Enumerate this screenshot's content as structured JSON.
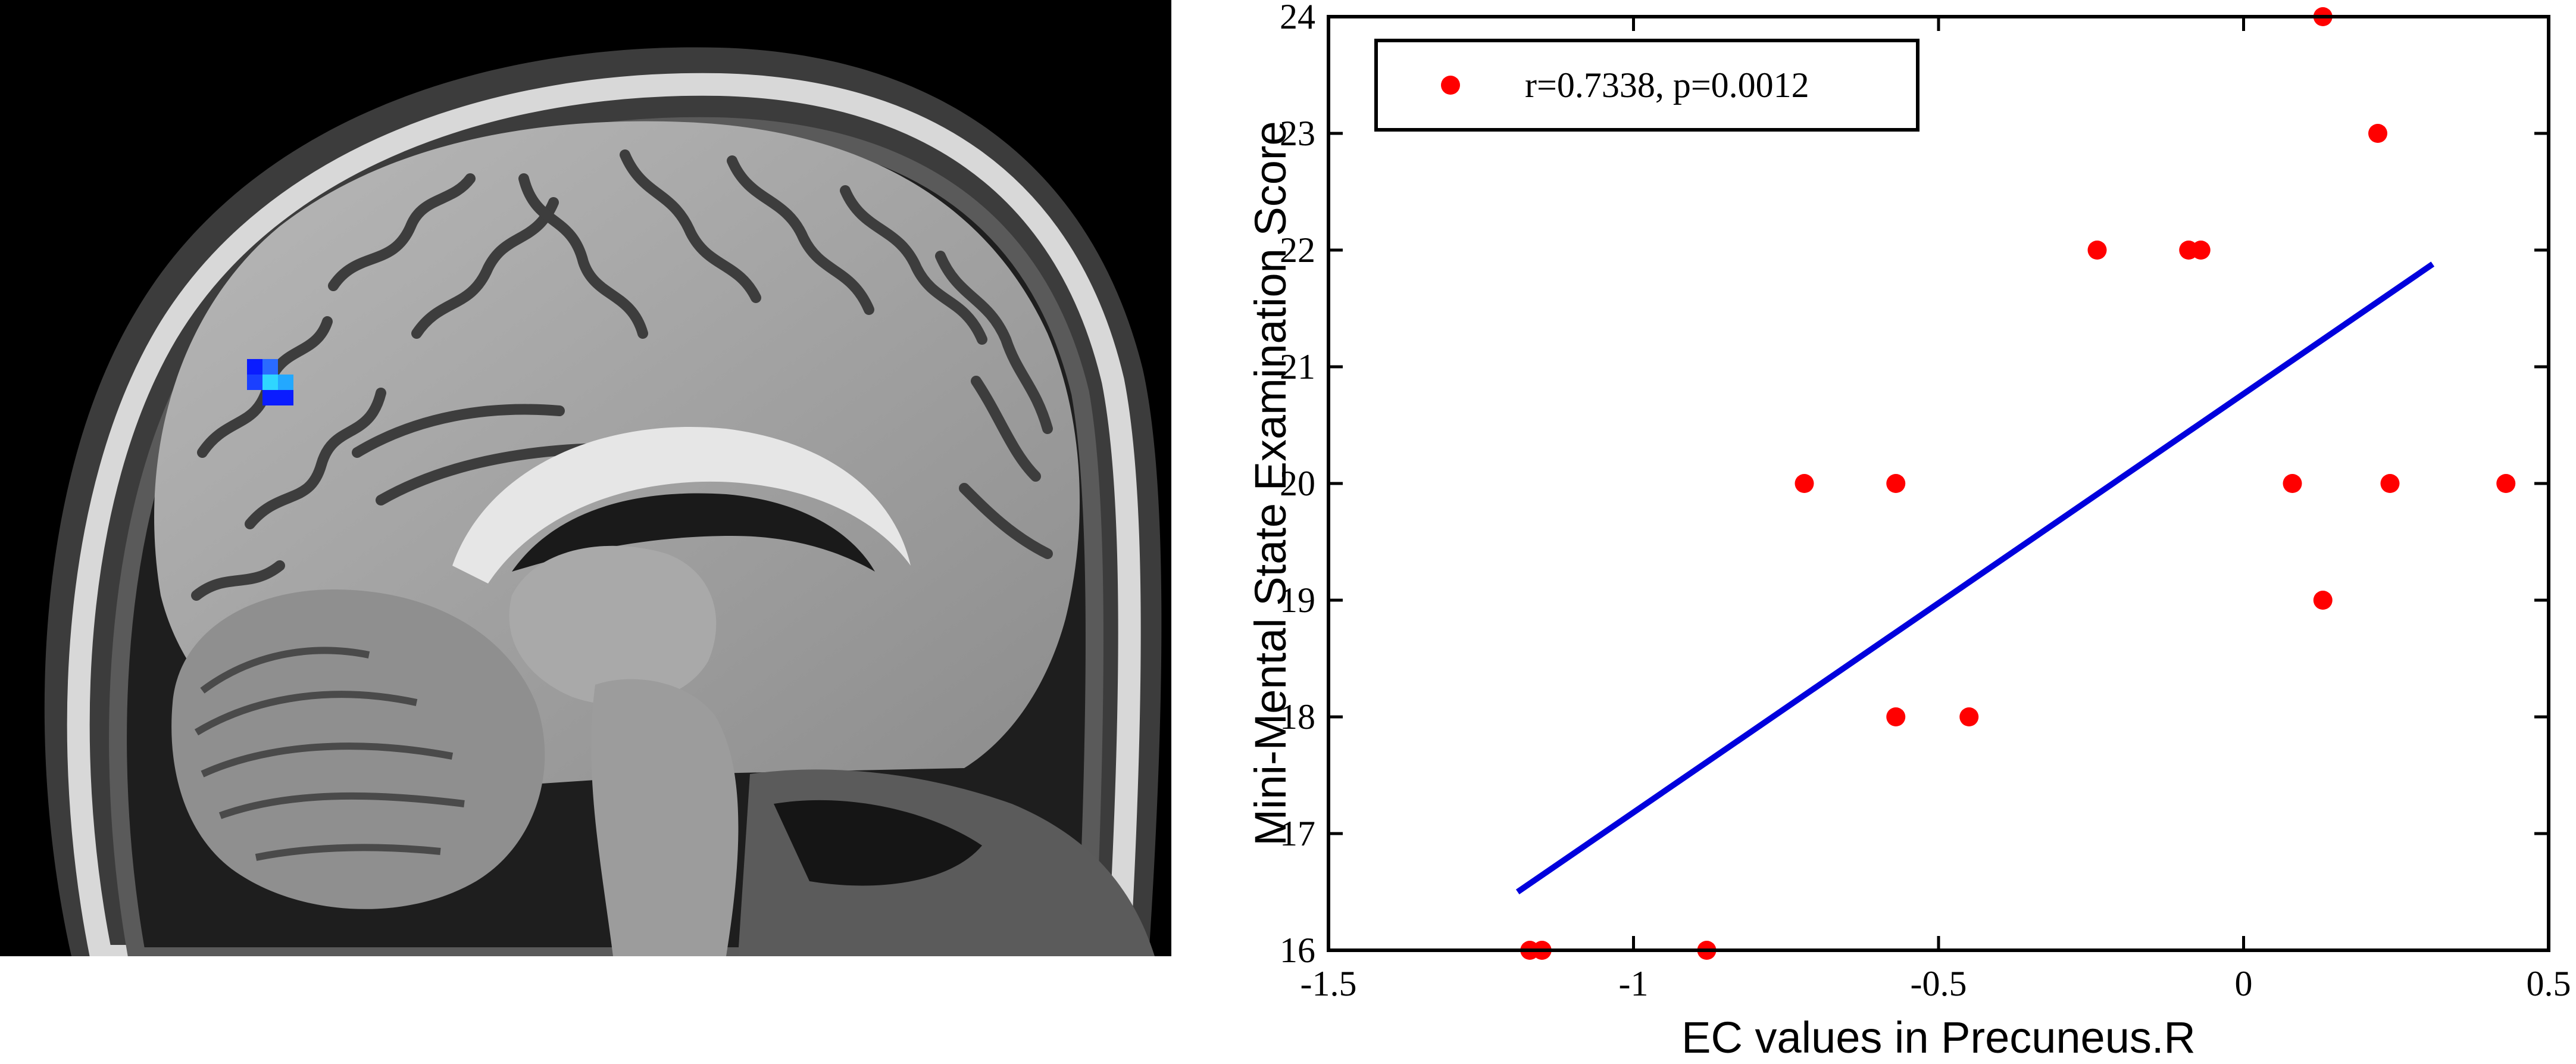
{
  "panel_left": {
    "colors": {
      "background": "#000000",
      "brain_light": "#c9c9c9",
      "brain_mid": "#8e8e8e",
      "brain_dark": "#3a3a3a",
      "activation_dark": "#0a1cff",
      "activation_light": "#2fd6ff"
    }
  },
  "chart_data": {
    "type": "scatter",
    "xlabel": "EC values in Precuneus.R",
    "ylabel": "Mini-Mental State Examination Score",
    "xlim": [
      -1.5,
      0.5
    ],
    "ylim": [
      16,
      24
    ],
    "xticks": [
      -1.5,
      -1,
      -0.5,
      0,
      0.5
    ],
    "xtick_labels": [
      "-1.5",
      "-1",
      "-0.5",
      "0",
      "0.5"
    ],
    "yticks": [
      16,
      17,
      18,
      19,
      20,
      21,
      22,
      23,
      24
    ],
    "ytick_labels": [
      "16",
      "17",
      "18",
      "19",
      "20",
      "21",
      "22",
      "23",
      "24"
    ],
    "grid": false,
    "legend": {
      "placement": "top-left",
      "entry": "r=0.7338, p=0.0012"
    },
    "series": [
      {
        "kind": "points",
        "color": "#ff0000",
        "points": [
          {
            "x": -1.17,
            "y": 16
          },
          {
            "x": -1.15,
            "y": 16
          },
          {
            "x": -0.88,
            "y": 16
          },
          {
            "x": -0.72,
            "y": 20
          },
          {
            "x": -0.57,
            "y": 20
          },
          {
            "x": -0.57,
            "y": 18
          },
          {
            "x": -0.45,
            "y": 18
          },
          {
            "x": -0.24,
            "y": 22
          },
          {
            "x": -0.09,
            "y": 22
          },
          {
            "x": -0.07,
            "y": 22
          },
          {
            "x": 0.08,
            "y": 20
          },
          {
            "x": 0.13,
            "y": 24
          },
          {
            "x": 0.13,
            "y": 19
          },
          {
            "x": 0.22,
            "y": 23
          },
          {
            "x": 0.24,
            "y": 20
          },
          {
            "x": 0.43,
            "y": 20
          }
        ]
      },
      {
        "kind": "fit-line",
        "color": "#0000dd",
        "points": [
          {
            "x": -1.19,
            "y": 16.5
          },
          {
            "x": 0.31,
            "y": 21.88
          }
        ]
      }
    ]
  }
}
